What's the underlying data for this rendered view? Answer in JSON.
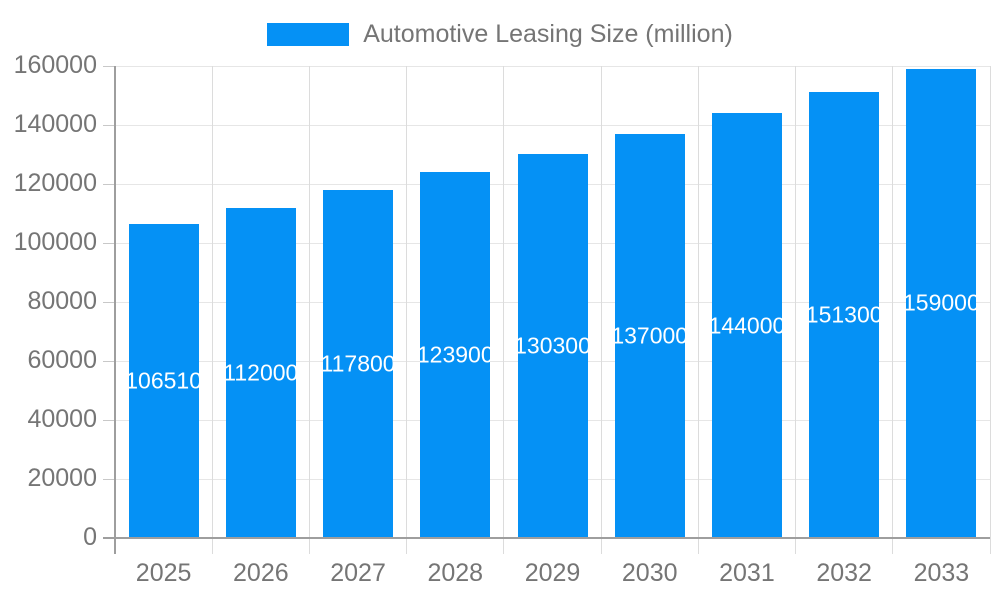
{
  "chart_data": {
    "type": "bar",
    "title": "",
    "legend": {
      "label": "Automotive Leasing Size (million)",
      "position": "top"
    },
    "categories": [
      "2025",
      "2026",
      "2027",
      "2028",
      "2029",
      "2030",
      "2031",
      "2032",
      "2033"
    ],
    "series": [
      {
        "name": "Automotive Leasing Size (million)",
        "values": [
          106510,
          112000,
          117800,
          123900,
          130300,
          137000,
          144000,
          151300,
          159000
        ]
      }
    ],
    "value_labels": [
      "106510",
      "112000",
      "117800",
      "123900",
      "130300",
      "137000",
      "144000",
      "151300",
      "159000"
    ],
    "xlabel": "",
    "ylabel": "",
    "ylim": [
      0,
      160000
    ],
    "ytick_step": 20000,
    "ytick_labels": [
      "0",
      "20000",
      "40000",
      "60000",
      "80000",
      "100000",
      "120000",
      "140000",
      "160000"
    ],
    "grid": true,
    "colors": {
      "bar": "#0591f5",
      "axis_label": "#757575",
      "legend_text": "#757575",
      "gridline": "#e0e0e0",
      "axis_line": "#9e9e9e",
      "value_label": "#ffffff",
      "background": "#ffffff"
    }
  }
}
